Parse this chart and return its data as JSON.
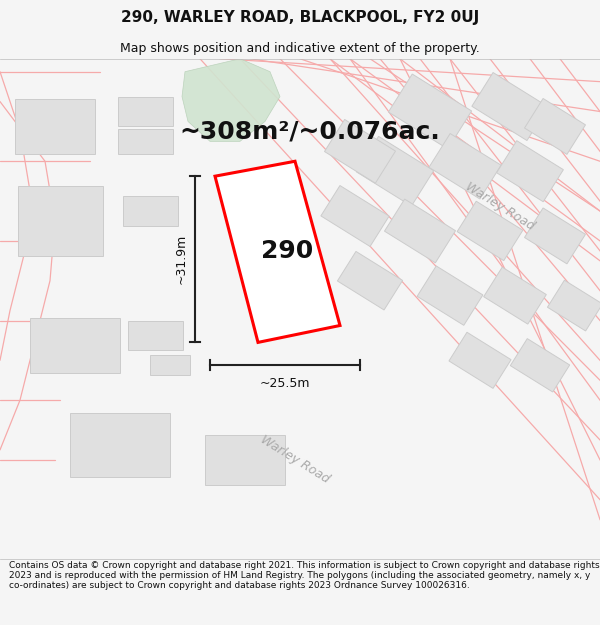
{
  "title_line1": "290, WARLEY ROAD, BLACKPOOL, FY2 0UJ",
  "title_line2": "Map shows position and indicative extent of the property.",
  "area_text": "~308m²/~0.076ac.",
  "label_290": "290",
  "dim_height": "~31.9m",
  "dim_width": "~25.5m",
  "road_label_right": "Warley Road",
  "road_label_bottom": "Warley Road",
  "footer_text": "Contains OS data © Crown copyright and database right 2021. This information is subject to Crown copyright and database rights 2023 and is reproduced with the permission of HM Land Registry. The polygons (including the associated geometry, namely x, y co-ordinates) are subject to Crown copyright and database rights 2023 Ordnance Survey 100026316.",
  "bg_color": "#f5f5f5",
  "map_bg": "#ffffff",
  "building_fill": "#e0e0e0",
  "building_edge": "#cccccc",
  "green_fill": "#d0e4d0",
  "green_edge": "#b8d0b8",
  "red_outline": "#ff0000",
  "property_fill": "#ffffff",
  "dim_line_color": "#222222",
  "road_line_color": "#f5aaaa",
  "road_bg_color": "#eeeeee",
  "road_text_color": "#aaaaaa",
  "title_fontsize": 11,
  "subtitle_fontsize": 9,
  "area_fontsize": 18,
  "label_fontsize": 18,
  "dim_fontsize": 9,
  "road_fontsize": 9,
  "footer_fontsize": 6.5
}
